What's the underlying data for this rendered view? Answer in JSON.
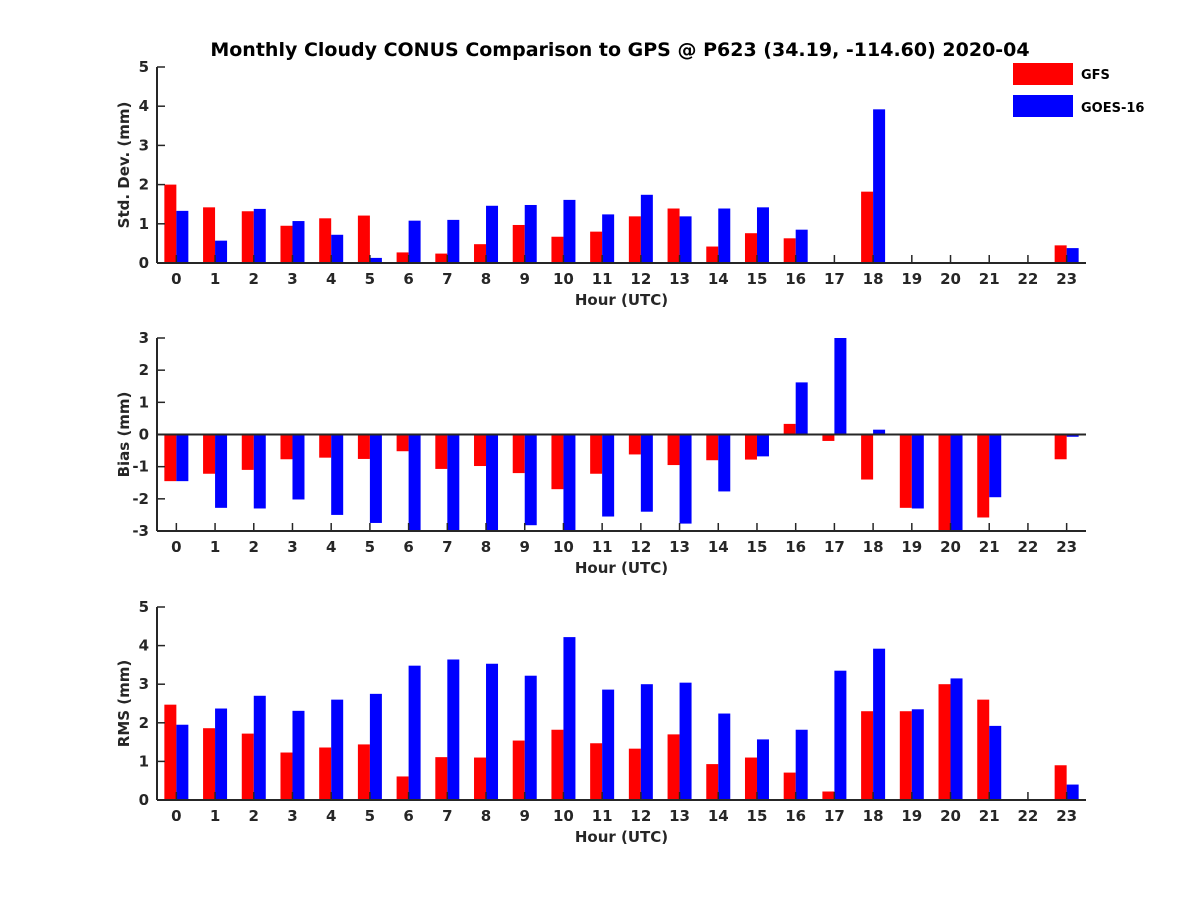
{
  "colors": {
    "gfs": "#ff0000",
    "goes": "#0000ff",
    "axis": "#262626"
  },
  "chart_data": {
    "type": "bar",
    "title": "Monthly Cloudy CONUS Comparison to GPS @ P623 (34.19, -114.60) 2020-04",
    "legend": {
      "entries": [
        "GFS",
        "GOES-16"
      ],
      "placement": "top-right"
    },
    "categories": [
      "0",
      "1",
      "2",
      "3",
      "4",
      "5",
      "6",
      "7",
      "8",
      "9",
      "10",
      "11",
      "12",
      "13",
      "14",
      "15",
      "16",
      "17",
      "18",
      "19",
      "20",
      "21",
      "22",
      "23"
    ],
    "panels": [
      {
        "id": "stddev",
        "xlabel": "Hour (UTC)",
        "ylabel": "Std. Dev. (mm)",
        "ylim": [
          0,
          5
        ],
        "yticks": [
          "0",
          "1",
          "2",
          "3",
          "4",
          "5"
        ],
        "series": [
          {
            "name": "GFS",
            "values": [
              2.0,
              1.42,
              1.32,
              0.95,
              1.14,
              1.21,
              0.27,
              0.24,
              0.48,
              0.97,
              0.67,
              0.8,
              1.19,
              1.39,
              0.42,
              0.76,
              0.63,
              0,
              1.82,
              0,
              0,
              0,
              0,
              0.45
            ]
          },
          {
            "name": "GOES-16",
            "values": [
              1.33,
              0.57,
              1.38,
              1.07,
              0.72,
              0.13,
              1.08,
              1.1,
              1.46,
              1.48,
              1.61,
              1.24,
              1.74,
              1.19,
              1.39,
              1.42,
              0.85,
              0,
              3.92,
              0,
              0,
              0,
              0,
              0.38
            ]
          }
        ]
      },
      {
        "id": "bias",
        "xlabel": "Hour (UTC)",
        "ylabel": "Bias (mm)",
        "ylim": [
          -3,
          3
        ],
        "yticks": [
          "-3",
          "-2",
          "-1",
          "0",
          "1",
          "2",
          "3"
        ],
        "series": [
          {
            "name": "GFS",
            "values": [
              -1.45,
              -1.22,
              -1.1,
              -0.77,
              -0.72,
              -0.76,
              -0.52,
              -1.07,
              -0.98,
              -1.2,
              -1.7,
              -1.22,
              -0.62,
              -0.95,
              -0.8,
              -0.78,
              0.33,
              -0.2,
              -1.4,
              -2.28,
              -3.0,
              -2.58,
              0,
              -0.77
            ]
          },
          {
            "name": "GOES-16",
            "values": [
              -1.45,
              -2.28,
              -2.3,
              -2.02,
              -2.5,
              -2.75,
              -3.0,
              -3.0,
              -3.0,
              -2.82,
              -3.0,
              -2.55,
              -2.4,
              -2.77,
              -1.77,
              -0.68,
              1.62,
              3.0,
              0.15,
              -2.3,
              -3.0,
              -1.95,
              0,
              -0.07
            ]
          }
        ]
      },
      {
        "id": "rms",
        "xlabel": "Hour (UTC)",
        "ylabel": "RMS (mm)",
        "ylim": [
          0,
          5
        ],
        "yticks": [
          "0",
          "1",
          "2",
          "3",
          "4",
          "5"
        ],
        "series": [
          {
            "name": "GFS",
            "values": [
              2.47,
              1.86,
              1.72,
              1.23,
              1.36,
              1.44,
              0.61,
              1.11,
              1.1,
              1.54,
              1.82,
              1.47,
              1.33,
              1.7,
              0.93,
              1.1,
              0.71,
              0.22,
              2.3,
              2.3,
              3.0,
              2.6,
              0,
              0.9
            ]
          },
          {
            "name": "GOES-16",
            "values": [
              1.95,
              2.37,
              2.7,
              2.31,
              2.6,
              2.75,
              3.48,
              3.64,
              3.53,
              3.22,
              4.22,
              2.86,
              3.0,
              3.04,
              2.24,
              1.57,
              1.82,
              3.35,
              3.92,
              2.35,
              3.15,
              1.92,
              0,
              0.4
            ]
          }
        ]
      }
    ]
  }
}
